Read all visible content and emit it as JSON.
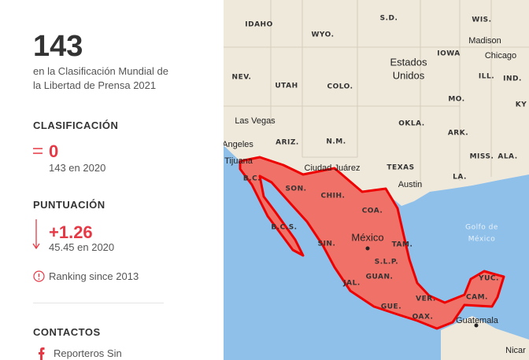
{
  "panel": {
    "rank": "143",
    "rank_caption": "en la Clasificación Mundial de la Libertad de Prensa 2021",
    "ranking_heading": "CLASIFICACIÓN",
    "ranking_change": "0",
    "ranking_previous": "143 en 2020",
    "score_heading": "PUNTUACIÓN",
    "score_change": "+1.26",
    "score_previous": "45.45 en 2020",
    "since_note": "Ranking since 2013",
    "contacts_heading": "CONTACTOS",
    "contact_link": "Reporteros Sin"
  },
  "map": {
    "labels": [
      "IDAHO",
      "WYO.",
      "S.D.",
      "WIS.",
      "Madison",
      "IOWA",
      "Chicago",
      "Estados",
      "Unidos",
      "NEV.",
      "UTAH",
      "COLO.",
      "ILL.",
      "IND.",
      "MO.",
      "KY",
      "Las Vegas",
      "OKLA.",
      "ARIZ.",
      "N.M.",
      "ARK.",
      "Angeles",
      "MISS.",
      "ALA.",
      "Tijuana",
      "Ciudad Juárez",
      "TEXAS",
      "B.C.",
      "Austin",
      "LA.",
      "SON.",
      "CHIH.",
      "COA.",
      "Golfo de",
      "México",
      "México",
      "B.C.S.",
      "TAM.",
      "SIN.",
      "S.L.P.",
      "JAL.",
      "GUAN.",
      "YUC.",
      "VER.",
      "CAM.",
      "GUE.",
      "OAX.",
      "Guatemala",
      "Nicar"
    ]
  }
}
